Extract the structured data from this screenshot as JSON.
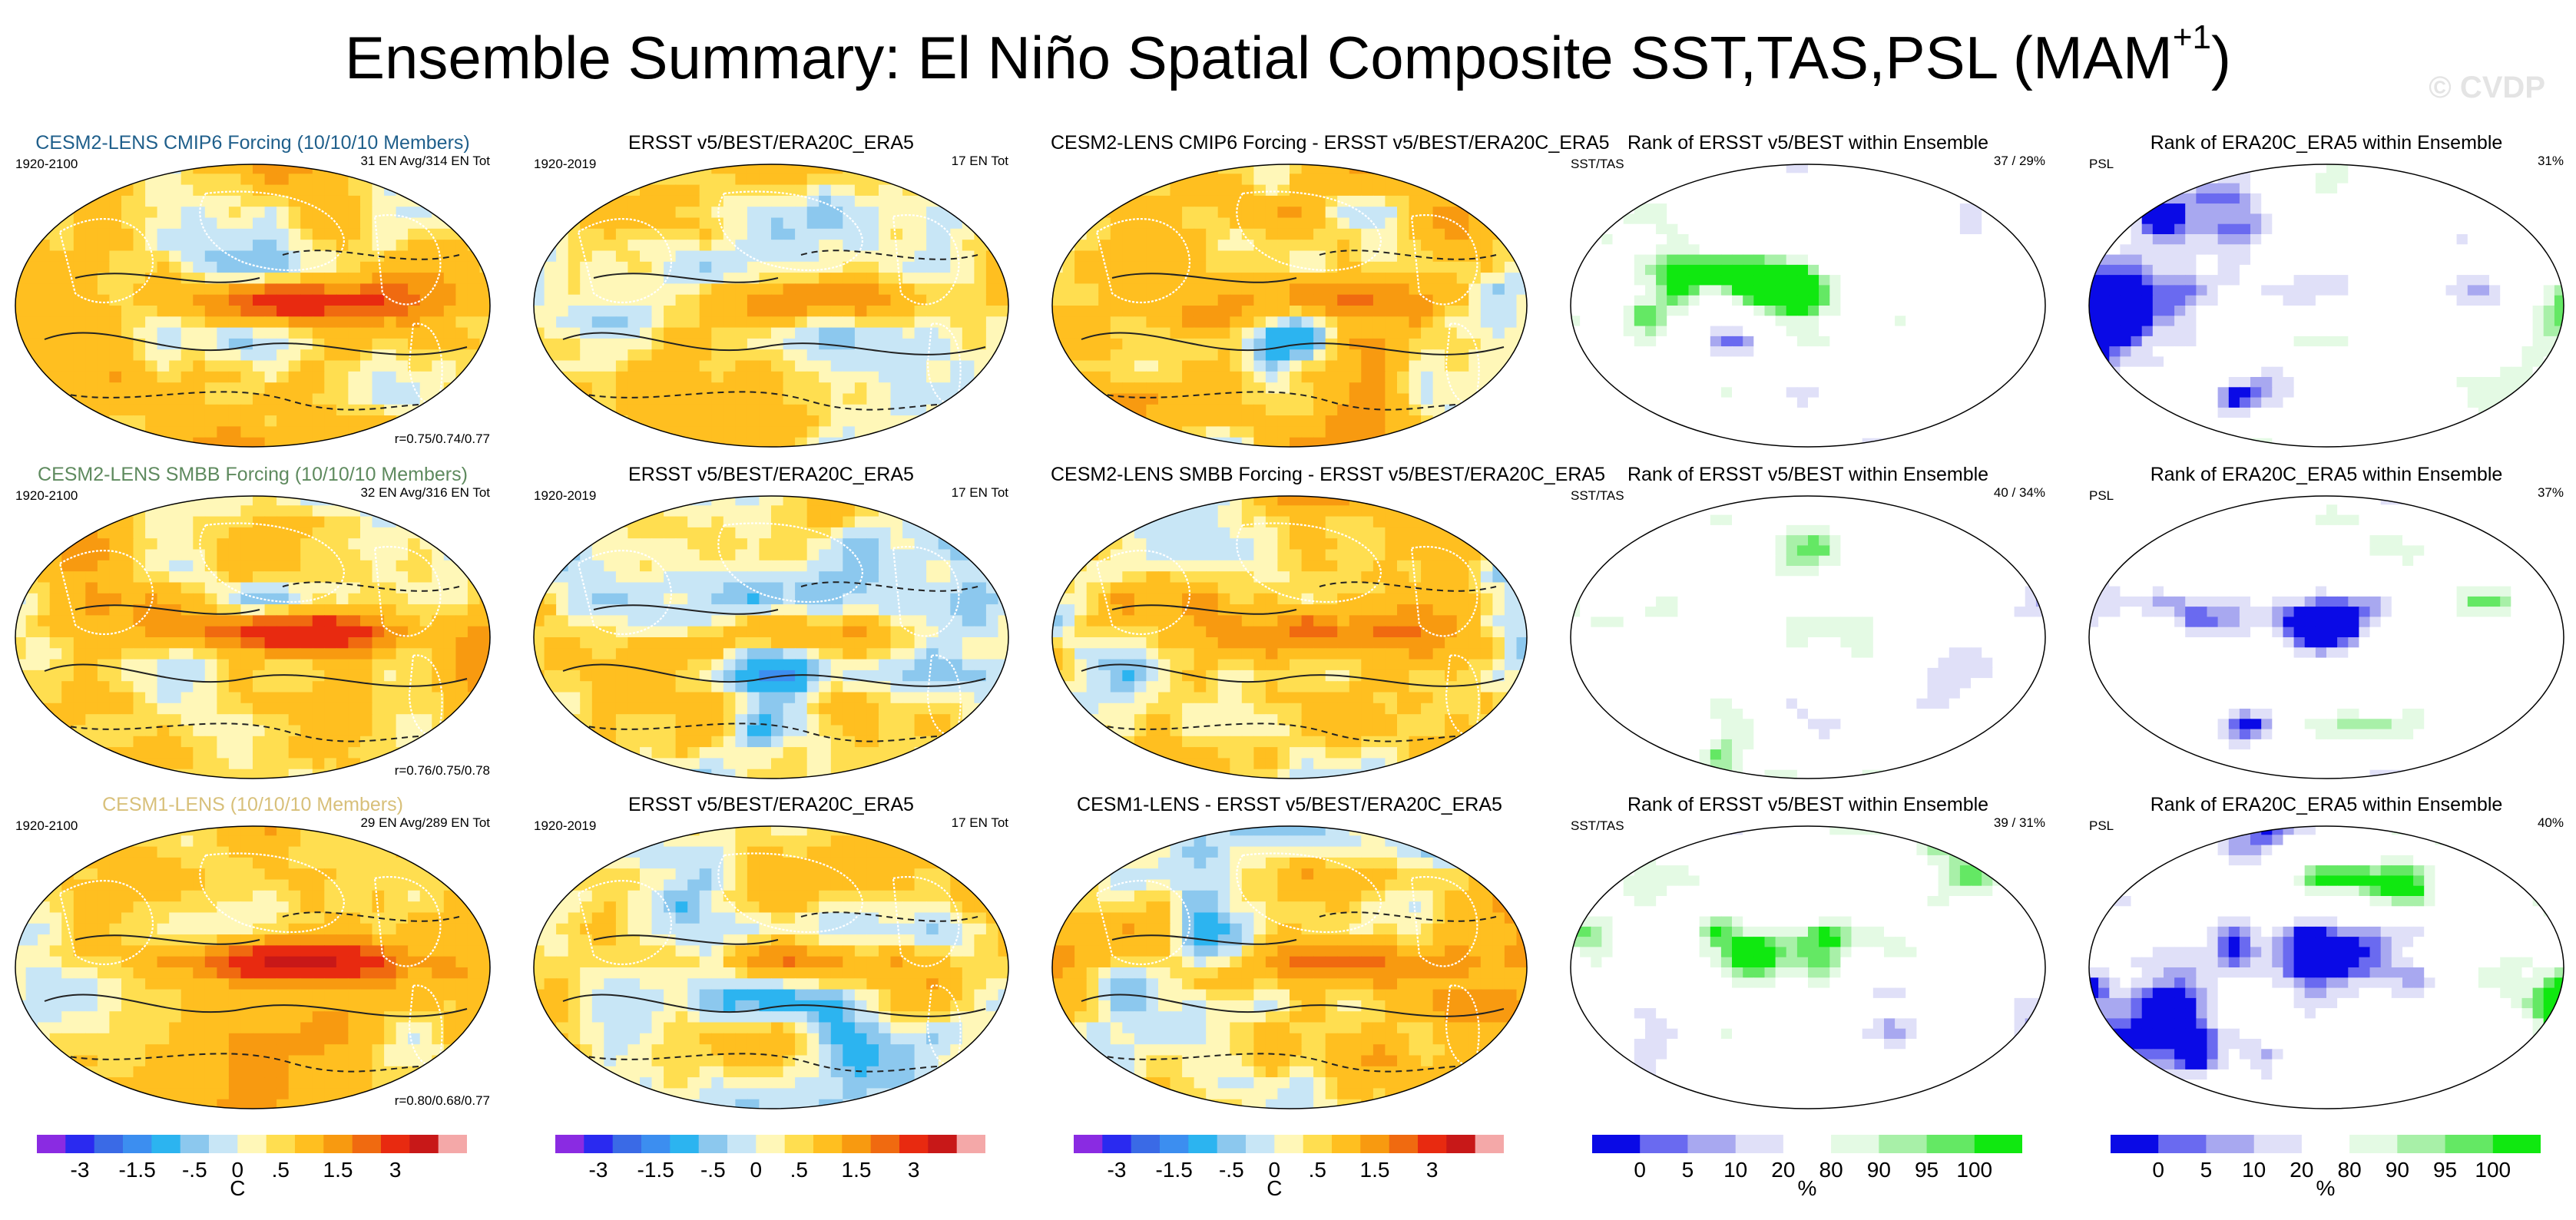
{
  "page": {
    "title_main": "Ensemble Summary: El Niño Spatial Composite SST,TAS,PSL (MAM",
    "title_sup": "+1",
    "title_close": ")",
    "watermark": "© CVDP"
  },
  "colors": {
    "model_title_1": "#1f5f8b",
    "model_title_2": "#5e8a5e",
    "model_title_3": "#d8c07a",
    "temperature_scale": [
      "#8a2be2",
      "#2a2af0",
      "#3a6ae6",
      "#3c8ef0",
      "#2cb4f0",
      "#8cc8ee",
      "#c8e6f6",
      "#fff7b8",
      "#ffde50",
      "#ffbf20",
      "#f89a10",
      "#f06a10",
      "#e82a10",
      "#c81818",
      "#f4a8a8"
    ],
    "rank_scale": [
      "#0a0ae6",
      "#6a6af0",
      "#a8a8f0",
      "#e0e0f8",
      "#ffffff",
      "#e4fae4",
      "#a8f0a8",
      "#64e864",
      "#10e810"
    ]
  },
  "chart_data": [
    {
      "type": "heatmap",
      "id": "r1c1",
      "title": "CESM2-LENS CMIP6 Forcing (10/10/10 Members)",
      "title_color": "model_title_1",
      "left_label": "1920-2100",
      "right_label": "31 EN Avg/314 EN Tot",
      "bottom_label": "r=0.75/0.74/0.77",
      "variant": "model",
      "colorbar": null
    },
    {
      "type": "heatmap",
      "id": "r1c2",
      "title": "ERSST v5/BEST/ERA20C_ERA5",
      "left_label": "1920-2019",
      "right_label": "17 EN Tot",
      "bottom_label": "",
      "variant": "obs",
      "colorbar": null
    },
    {
      "type": "heatmap",
      "id": "r1c3",
      "title": "CESM2-LENS CMIP6 Forcing - ERSST v5/BEST/ERA20C_ERA5",
      "left_label": "",
      "right_label": "",
      "bottom_label": "",
      "variant": "diff",
      "colorbar": null
    },
    {
      "type": "heatmap",
      "id": "r1c4",
      "title": "Rank of ERSST v5/BEST within Ensemble",
      "left_label": "SST/TAS",
      "right_label": "37 / 29%",
      "bottom_label": "",
      "variant": "rank",
      "colorbar": null
    },
    {
      "type": "heatmap",
      "id": "r1c5",
      "title": "Rank of ERA20C_ERA5 within Ensemble",
      "left_label": "PSL",
      "right_label": "31%",
      "bottom_label": "",
      "variant": "rankpsl",
      "colorbar": null
    },
    {
      "type": "heatmap",
      "id": "r2c1",
      "title": "CESM2-LENS SMBB Forcing (10/10/10 Members)",
      "title_color": "model_title_2",
      "left_label": "1920-2100",
      "right_label": "32 EN Avg/316 EN Tot",
      "bottom_label": "r=0.76/0.75/0.78",
      "variant": "model",
      "colorbar": null
    },
    {
      "type": "heatmap",
      "id": "r2c2",
      "title": "ERSST v5/BEST/ERA20C_ERA5",
      "left_label": "1920-2019",
      "right_label": "17 EN Tot",
      "bottom_label": "",
      "variant": "obs",
      "colorbar": null
    },
    {
      "type": "heatmap",
      "id": "r2c3",
      "title": "CESM2-LENS SMBB Forcing - ERSST v5/BEST/ERA20C_ERA5",
      "left_label": "",
      "right_label": "",
      "bottom_label": "",
      "variant": "diff",
      "colorbar": null
    },
    {
      "type": "heatmap",
      "id": "r2c4",
      "title": "Rank of ERSST v5/BEST within Ensemble",
      "left_label": "SST/TAS",
      "right_label": "40 / 34%",
      "bottom_label": "",
      "variant": "rank",
      "colorbar": null
    },
    {
      "type": "heatmap",
      "id": "r2c5",
      "title": "Rank of ERA20C_ERA5 within Ensemble",
      "left_label": "PSL",
      "right_label": "37%",
      "bottom_label": "",
      "variant": "rankpsl",
      "colorbar": null
    },
    {
      "type": "heatmap",
      "id": "r3c1",
      "title": "CESM1-LENS (10/10/10 Members)",
      "title_color": "model_title_3",
      "left_label": "1920-2100",
      "right_label": "29 EN Avg/289 EN Tot",
      "bottom_label": "r=0.80/0.68/0.77",
      "variant": "model",
      "colorbar": {
        "kind": "temperature",
        "ticks": [
          "-3",
          "-1.5",
          "-.5",
          "0",
          ".5",
          "1.5",
          "3"
        ],
        "unit": "C"
      }
    },
    {
      "type": "heatmap",
      "id": "r3c2",
      "title": "ERSST v5/BEST/ERA20C_ERA5",
      "left_label": "1920-2019",
      "right_label": "17 EN Tot",
      "bottom_label": "",
      "variant": "obs",
      "colorbar": {
        "kind": "temperature",
        "ticks": [
          "-3",
          "-1.5",
          "-.5",
          "0",
          ".5",
          "1.5",
          "3"
        ],
        "unit": ""
      }
    },
    {
      "type": "heatmap",
      "id": "r3c3",
      "title": "CESM1-LENS - ERSST v5/BEST/ERA20C_ERA5",
      "left_label": "",
      "right_label": "",
      "bottom_label": "",
      "variant": "diff",
      "colorbar": {
        "kind": "temperature",
        "ticks": [
          "-3",
          "-1.5",
          "-.5",
          "0",
          ".5",
          "1.5",
          "3"
        ],
        "unit": "C"
      }
    },
    {
      "type": "heatmap",
      "id": "r3c4",
      "title": "Rank of ERSST v5/BEST within Ensemble",
      "left_label": "SST/TAS",
      "right_label": "39 / 31%",
      "bottom_label": "",
      "variant": "rank",
      "colorbar": {
        "kind": "rank",
        "ticks": [
          "0",
          "5",
          "10",
          "20",
          "80",
          "90",
          "95",
          "100"
        ],
        "unit": "%"
      }
    },
    {
      "type": "heatmap",
      "id": "r3c5",
      "title": "Rank of ERA20C_ERA5 within Ensemble",
      "left_label": "PSL",
      "right_label": "40%",
      "bottom_label": "",
      "variant": "rankpsl",
      "colorbar": {
        "kind": "rank",
        "ticks": [
          "0",
          "5",
          "10",
          "20",
          "80",
          "90",
          "95",
          "100"
        ],
        "unit": "%"
      }
    }
  ]
}
